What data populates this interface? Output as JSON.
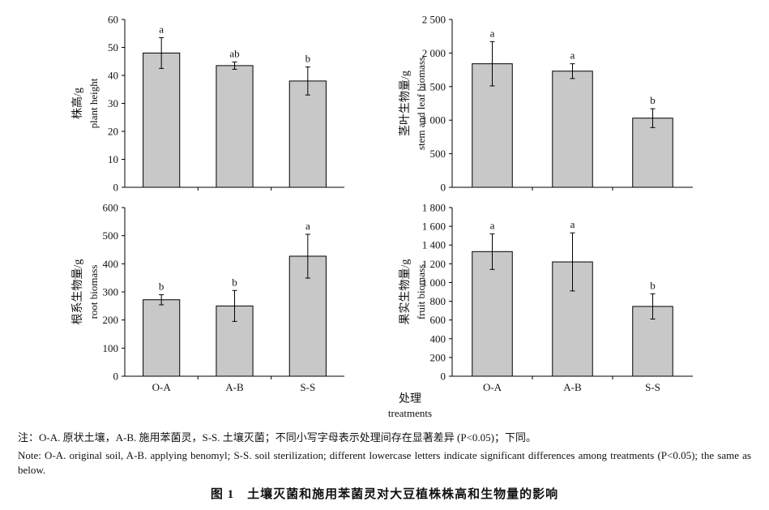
{
  "chart_data": [
    {
      "type": "bar",
      "ylabel_cn": "株高/g",
      "ylabel_en": "plant height",
      "ylim": [
        0,
        60
      ],
      "yticks": [
        "0",
        "10",
        "20",
        "30",
        "40",
        "50",
        "60"
      ],
      "categories": [
        "O-A",
        "A-B",
        "S-S"
      ],
      "values": [
        48,
        43.5,
        38
      ],
      "err": [
        5.5,
        1.3,
        5
      ],
      "letters": [
        "a",
        "ab",
        "b"
      ],
      "show_xticklabels": false
    },
    {
      "type": "bar",
      "ylabel_cn": "茎叶生物量/g",
      "ylabel_en": "stem and leaf biomass",
      "ylim": [
        0,
        2500
      ],
      "yticks": [
        "0",
        "500",
        "1 000",
        "1 500",
        "2 000",
        "2 500"
      ],
      "categories": [
        "O-A",
        "A-B",
        "S-S"
      ],
      "values": [
        1840,
        1730,
        1030
      ],
      "err": [
        330,
        110,
        140
      ],
      "letters": [
        "a",
        "a",
        "b"
      ],
      "show_xticklabels": false
    },
    {
      "type": "bar",
      "ylabel_cn": "根系生物量/g",
      "ylabel_en": "root biomass",
      "ylim": [
        0,
        600
      ],
      "yticks": [
        "0",
        "100",
        "200",
        "300",
        "400",
        "500",
        "600"
      ],
      "categories": [
        "O-A",
        "A-B",
        "S-S"
      ],
      "values": [
        272,
        250,
        427
      ],
      "err": [
        18,
        55,
        78
      ],
      "letters": [
        "b",
        "b",
        "a"
      ],
      "show_xticklabels": true
    },
    {
      "type": "bar",
      "ylabel_cn": "果实生物量/g",
      "ylabel_en": "fruit biomass",
      "ylim": [
        0,
        1800
      ],
      "yticks": [
        "0",
        "200",
        "400",
        "600",
        "800",
        "1 000",
        "1 200",
        "1 400",
        "1 600",
        "1 800"
      ],
      "categories": [
        "O-A",
        "A-B",
        "S-S"
      ],
      "values": [
        1330,
        1220,
        745
      ],
      "err": [
        190,
        310,
        135
      ],
      "letters": [
        "a",
        "a",
        "b"
      ],
      "show_xticklabels": true
    }
  ],
  "xlabel_cn": "处理",
  "xlabel_en": "treatments",
  "colors": {
    "bar_fill": "#c8c8c8",
    "axis": "#000000"
  },
  "notes": {
    "cn": "注：O-A. 原状土壤，A-B. 施用苯菌灵，S-S. 土壤灭菌；不同小写字母表示处理间存在显著差异 (P<0.05)；下同。",
    "en": "Note: O-A. original soil, A-B. applying benomyl; S-S. soil sterilization; different lowercase letters indicate significant differences among treatments (P<0.05); the same as below."
  },
  "caption": "图 1　土壤灭菌和施用苯菌灵对大豆植株株高和生物量的影响"
}
